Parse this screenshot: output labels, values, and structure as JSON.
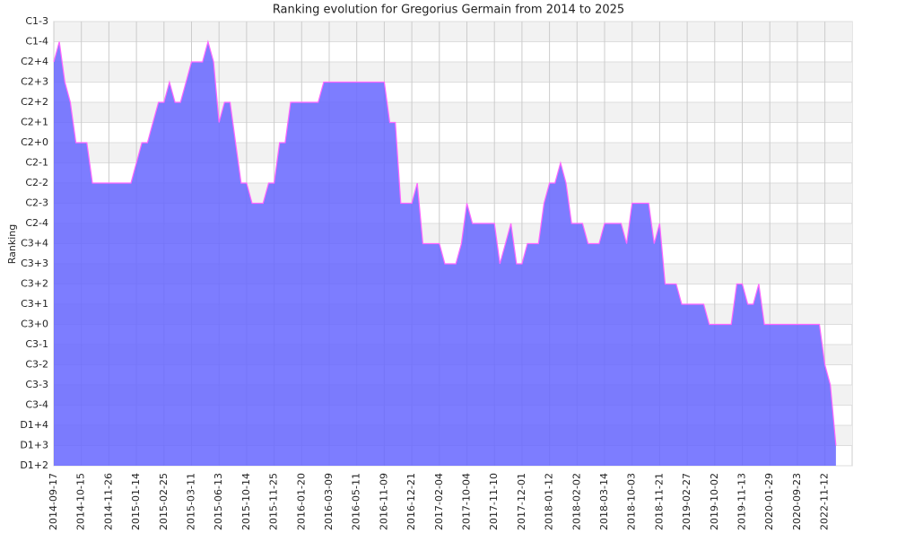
{
  "chart_data": {
    "type": "area",
    "title": "Ranking evolution for Gregorius Germain from 2014 to 2025",
    "y_label": "Ranking",
    "categories": [
      "2014-09-17",
      null,
      null,
      null,
      null,
      "2014-10-15",
      null,
      null,
      null,
      null,
      "2014-11-26",
      null,
      null,
      null,
      null,
      "2015-01-14",
      null,
      null,
      null,
      null,
      "2015-02-25",
      null,
      null,
      null,
      null,
      "2015-03-11",
      null,
      null,
      null,
      null,
      "2015-06-13",
      null,
      null,
      null,
      null,
      "2015-10-14",
      null,
      null,
      null,
      null,
      "2015-11-25",
      null,
      null,
      null,
      null,
      "2016-01-20",
      null,
      null,
      null,
      null,
      "2016-03-09",
      null,
      null,
      null,
      null,
      "2016-05-11",
      null,
      null,
      null,
      null,
      "2016-11-09",
      null,
      null,
      null,
      null,
      "2016-12-21",
      null,
      null,
      null,
      null,
      "2017-02-04",
      null,
      null,
      null,
      null,
      "2017-10-04",
      null,
      null,
      null,
      null,
      "2017-11-10",
      null,
      null,
      null,
      null,
      "2017-12-01",
      null,
      null,
      null,
      null,
      "2018-01-12",
      null,
      null,
      null,
      null,
      "2018-02-02",
      null,
      null,
      null,
      null,
      "2018-03-14",
      null,
      null,
      null,
      null,
      "2018-10-03",
      null,
      null,
      null,
      null,
      "2018-11-21",
      null,
      null,
      null,
      null,
      "2019-02-27",
      null,
      null,
      null,
      null,
      "2019-10-02",
      null,
      null,
      null,
      null,
      "2019-11-13",
      null,
      null,
      null,
      null,
      "2020-01-29",
      null,
      null,
      null,
      null,
      "2020-09-23",
      null,
      null,
      null,
      null,
      "2022-11-12",
      null,
      null
    ],
    "series": [
      {
        "name": "Ranking",
        "color": "#ff66ff",
        "fill": "#6666ff",
        "values": [
          20,
          21,
          19,
          18,
          16,
          16,
          16,
          14,
          14,
          14,
          14,
          14,
          14,
          14,
          14,
          15,
          16,
          16,
          17,
          18,
          18,
          19,
          18,
          18,
          19,
          20,
          20,
          20,
          21,
          20,
          17,
          18,
          18,
          16,
          14,
          14,
          13,
          13,
          13,
          14,
          14,
          16,
          16,
          18,
          18,
          18,
          18,
          18,
          18,
          19,
          19,
          19,
          19,
          19,
          19,
          19,
          19,
          19,
          19,
          19,
          19,
          17,
          17,
          13,
          13,
          13,
          14,
          11,
          11,
          11,
          11,
          10,
          10,
          10,
          11,
          13,
          12,
          12,
          12,
          12,
          12,
          10,
          11,
          12,
          10,
          10,
          11,
          11,
          11,
          13,
          14,
          14,
          15,
          14,
          12,
          12,
          12,
          11,
          11,
          11,
          12,
          12,
          12,
          12,
          11,
          13,
          13,
          13,
          13,
          11,
          12,
          9,
          9,
          9,
          8,
          8,
          8,
          8,
          8,
          7,
          7,
          7,
          7,
          7,
          9,
          9,
          8,
          8,
          9,
          7,
          7,
          7,
          7,
          7,
          7,
          7,
          7,
          7,
          7,
          7,
          5,
          4,
          1
        ]
      }
    ],
    "ylim": [
      0,
      22
    ],
    "yticks": [
      {
        "value": 0,
        "label": "D1+2"
      },
      {
        "value": 1,
        "label": "D1+3"
      },
      {
        "value": 2,
        "label": "D1+4"
      },
      {
        "value": 3,
        "label": "C3-4"
      },
      {
        "value": 4,
        "label": "C3-3"
      },
      {
        "value": 5,
        "label": "C3-2"
      },
      {
        "value": 6,
        "label": "C3-1"
      },
      {
        "value": 7,
        "label": "C3+0"
      },
      {
        "value": 8,
        "label": "C3+1"
      },
      {
        "value": 9,
        "label": "C3+2"
      },
      {
        "value": 10,
        "label": "C3+3"
      },
      {
        "value": 11,
        "label": "C3+4"
      },
      {
        "value": 12,
        "label": "C2-4"
      },
      {
        "value": 13,
        "label": "C2-3"
      },
      {
        "value": 14,
        "label": "C2-2"
      },
      {
        "value": 15,
        "label": "C2-1"
      },
      {
        "value": 16,
        "label": "C2+0"
      },
      {
        "value": 17,
        "label": "C2+1"
      },
      {
        "value": 18,
        "label": "C2+2"
      },
      {
        "value": 19,
        "label": "C2+3"
      },
      {
        "value": 20,
        "label": "C2+4"
      },
      {
        "value": 21,
        "label": "C1-4"
      },
      {
        "value": 22,
        "label": "C1-3"
      }
    ],
    "grid": true
  }
}
